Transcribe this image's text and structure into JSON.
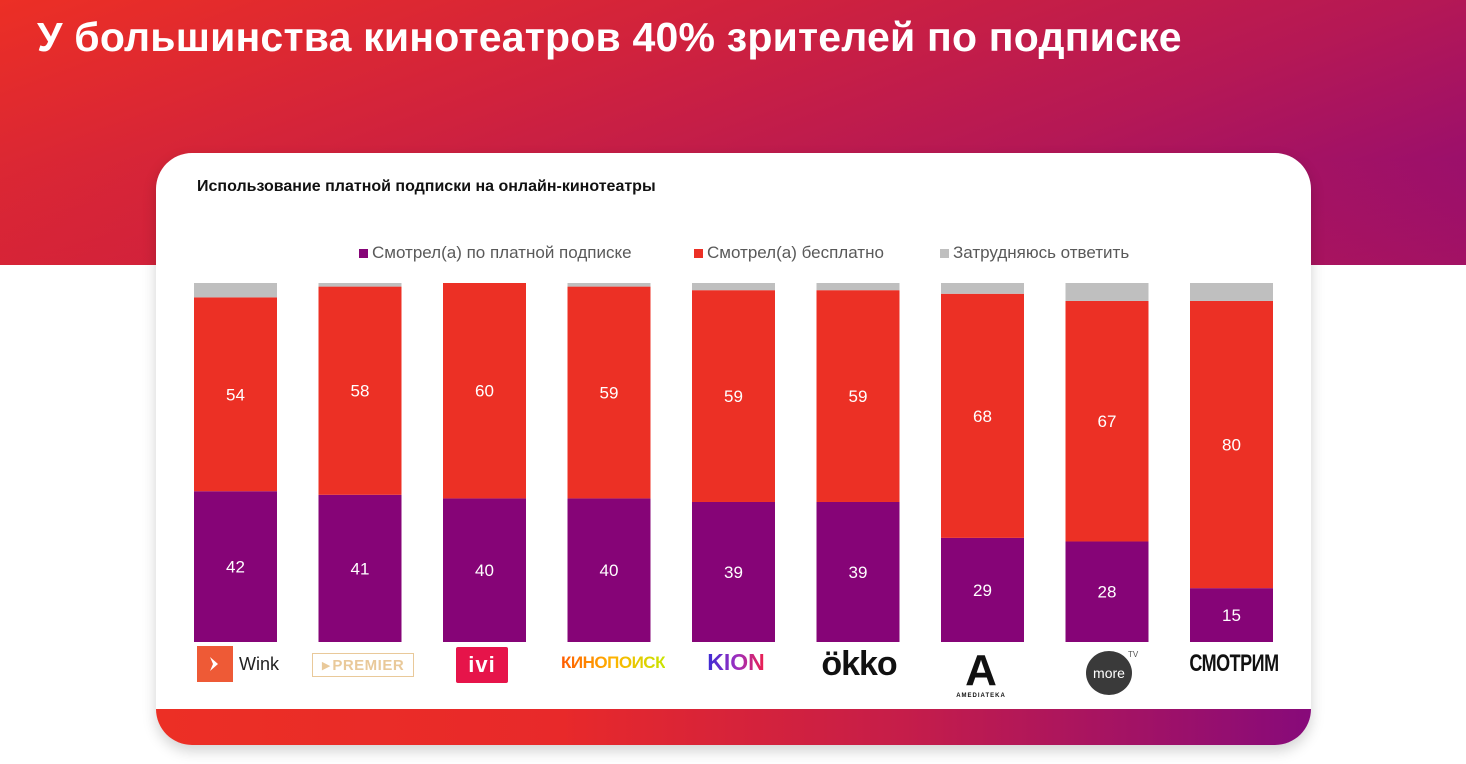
{
  "page": {
    "title": "У большинства кинотеатров 40% зрителей по подписке"
  },
  "colors": {
    "paid": "#860477",
    "free": "#ec3025",
    "unsure": "#bfbfbf",
    "brand_red": "#ec2f25",
    "brand_purple": "#8c0a78"
  },
  "chart_data": {
    "type": "bar",
    "stacked": true,
    "percent_stacked": true,
    "title": "Использование платной подписки на онлайн-кинотеатры",
    "xlabel": "",
    "ylabel": "",
    "ylim": [
      0,
      100
    ],
    "grid": false,
    "legend_position": "top",
    "categories": [
      "Wink",
      "PREMIER",
      "ivi",
      "Кинопоиск",
      "KION",
      "Okko",
      "Amediateka",
      "More.tv",
      "Смотрим"
    ],
    "series": [
      {
        "name": "Смотрел(а) по платной подписке",
        "color": "#860477",
        "values": [
          42,
          41,
          40,
          40,
          39,
          39,
          29,
          28,
          15
        ]
      },
      {
        "name": "Смотрел(а) бесплатно",
        "color": "#ec3025",
        "values": [
          54,
          58,
          60,
          59,
          59,
          59,
          68,
          67,
          80
        ]
      },
      {
        "name": "Затрудняюсь ответить",
        "color": "#bfbfbf",
        "values": [
          4,
          1,
          0,
          1,
          2,
          2,
          3,
          5,
          5
        ]
      }
    ],
    "data_labels": {
      "shown_for": [
        "Смотрел(а) по платной подписке",
        "Смотрел(а) бесплатно"
      ]
    }
  },
  "logos": {
    "wink": {
      "text": "Wink"
    },
    "premier": {
      "text": "PREMIER"
    },
    "ivi": {
      "text": "ivi"
    },
    "kinopoisk": {
      "text": "КИНОПОИСК"
    },
    "kion": {
      "text": "KION"
    },
    "okko": {
      "text": "ökko"
    },
    "amediateka": {
      "letter": "A",
      "text": "AMEDIATEKA"
    },
    "moretv": {
      "text": "more",
      "tv": "TV"
    },
    "smotrim": {
      "text": "СМОТРИМ"
    }
  }
}
